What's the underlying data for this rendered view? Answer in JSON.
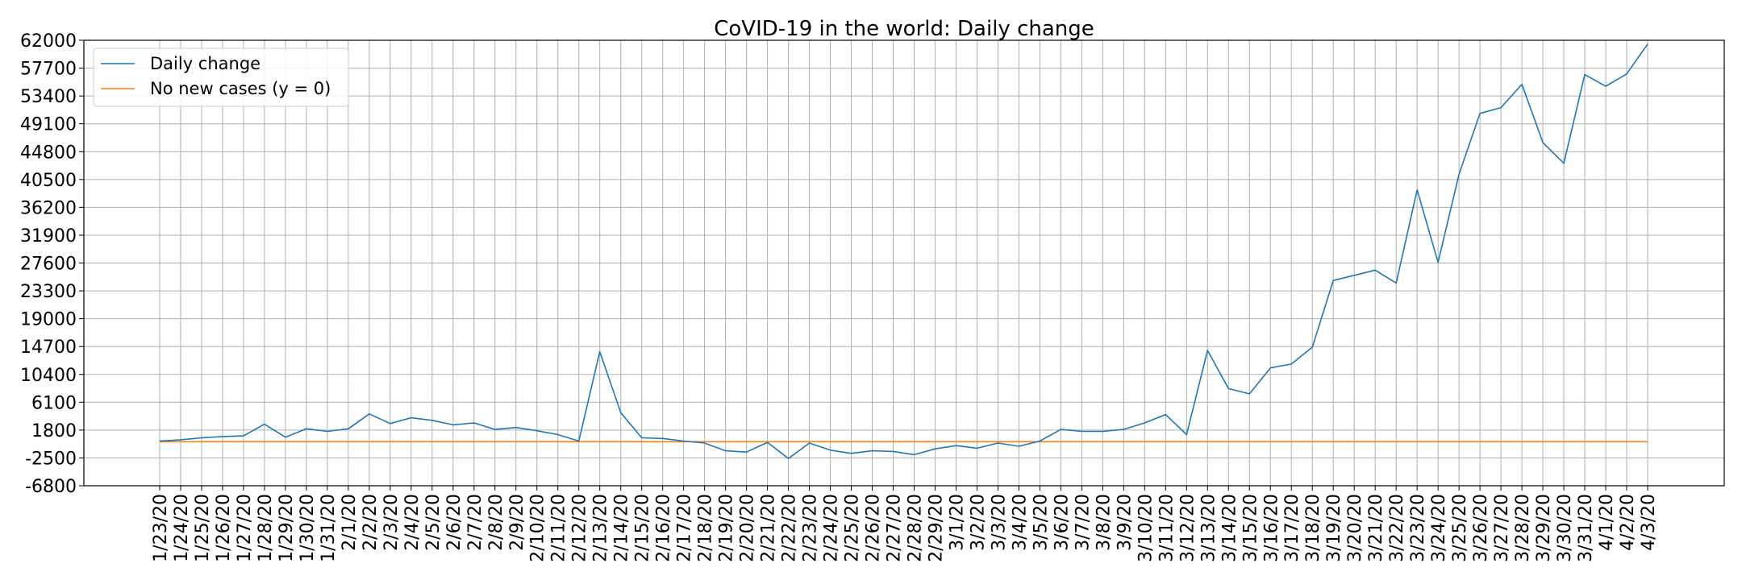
{
  "chart_data": {
    "type": "line",
    "title": "CoVID-19 in the world: Daily change",
    "xlabel": "",
    "ylabel": "",
    "grid": true,
    "legend_position": "top-left",
    "y_ticks": [
      -6800,
      -2500,
      1800,
      6100,
      10400,
      14700,
      19000,
      23300,
      27600,
      31900,
      36200,
      40500,
      44800,
      49100,
      53400,
      57700,
      62000
    ],
    "ylim": [
      -6800,
      62000
    ],
    "x": [
      "1/23/20",
      "1/24/20",
      "1/25/20",
      "1/26/20",
      "1/27/20",
      "1/28/20",
      "1/29/20",
      "1/30/20",
      "1/31/20",
      "2/1/20",
      "2/2/20",
      "2/3/20",
      "2/4/20",
      "2/5/20",
      "2/6/20",
      "2/7/20",
      "2/8/20",
      "2/9/20",
      "2/10/20",
      "2/11/20",
      "2/12/20",
      "2/13/20",
      "2/14/20",
      "2/15/20",
      "2/16/20",
      "2/17/20",
      "2/18/20",
      "2/19/20",
      "2/20/20",
      "2/21/20",
      "2/22/20",
      "2/23/20",
      "2/24/20",
      "2/25/20",
      "2/26/20",
      "2/27/20",
      "2/28/20",
      "2/29/20",
      "3/1/20",
      "3/2/20",
      "3/3/20",
      "3/4/20",
      "3/5/20",
      "3/6/20",
      "3/7/20",
      "3/8/20",
      "3/9/20",
      "3/10/20",
      "3/11/20",
      "3/12/20",
      "3/13/20",
      "3/14/20",
      "3/15/20",
      "3/16/20",
      "3/17/20",
      "3/18/20",
      "3/19/20",
      "3/20/20",
      "3/21/20",
      "3/22/20",
      "3/23/20",
      "3/24/20",
      "3/25/20",
      "3/26/20",
      "3/27/20",
      "3/28/20",
      "3/29/20",
      "3/30/20",
      "3/31/20",
      "4/1/20",
      "4/2/20",
      "4/3/20"
    ],
    "series": [
      {
        "name": "Daily change",
        "color": "#1f77b4",
        "values": [
          100,
          300,
          600,
          800,
          900,
          2700,
          700,
          2000,
          1600,
          2000,
          4300,
          2800,
          3700,
          3300,
          2600,
          2900,
          1900,
          2200,
          1700,
          1100,
          100,
          13900,
          4500,
          600,
          500,
          100,
          -200,
          -1400,
          -1600,
          -100,
          -2600,
          -200,
          -1300,
          -1800,
          -1400,
          -1500,
          -2000,
          -1100,
          -600,
          -1000,
          -200,
          -700,
          100,
          1900,
          1600,
          1600,
          1900,
          2900,
          4200,
          1100,
          14100,
          8200,
          7400,
          11400,
          12000,
          14600,
          24900,
          25700,
          26500,
          24500,
          38900,
          27700,
          41300,
          50700,
          51600,
          55200,
          46200,
          43000,
          56700,
          54900,
          56800,
          61400
        ]
      },
      {
        "name": "No new cases (y = 0)",
        "color": "#ff7f0e",
        "values": [
          0,
          0,
          0,
          0,
          0,
          0,
          0,
          0,
          0,
          0,
          0,
          0,
          0,
          0,
          0,
          0,
          0,
          0,
          0,
          0,
          0,
          0,
          0,
          0,
          0,
          0,
          0,
          0,
          0,
          0,
          0,
          0,
          0,
          0,
          0,
          0,
          0,
          0,
          0,
          0,
          0,
          0,
          0,
          0,
          0,
          0,
          0,
          0,
          0,
          0,
          0,
          0,
          0,
          0,
          0,
          0,
          0,
          0,
          0,
          0,
          0,
          0,
          0,
          0,
          0,
          0,
          0,
          0,
          0,
          0,
          0,
          0
        ]
      }
    ]
  }
}
